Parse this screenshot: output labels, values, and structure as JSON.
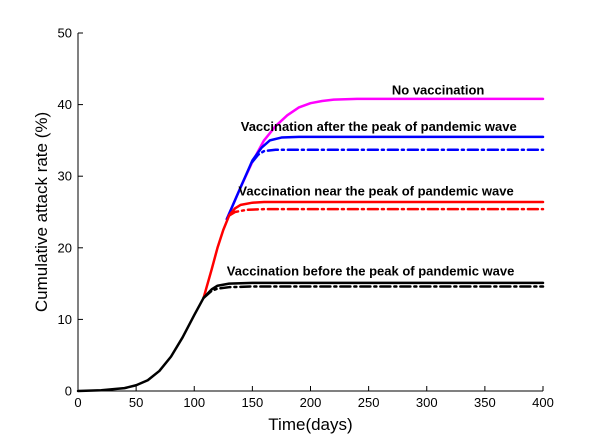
{
  "chart_data": {
    "type": "line",
    "title": "",
    "xlabel": "Time(days)",
    "ylabel": "Cumulative attack rate (%)",
    "xlim": [
      0,
      400
    ],
    "ylim": [
      0,
      50
    ],
    "xticks": [
      0,
      50,
      100,
      150,
      200,
      250,
      300,
      350,
      400
    ],
    "yticks": [
      0,
      10,
      20,
      30,
      40,
      50
    ],
    "grid": false,
    "legend": "none",
    "series": [
      {
        "color": "#ff00ff",
        "style": "solid",
        "points": [
          [
            128,
            24
          ],
          [
            140,
            28.5
          ],
          [
            150,
            32
          ],
          [
            160,
            35
          ],
          [
            170,
            37
          ],
          [
            180,
            38.5
          ],
          [
            190,
            39.6
          ],
          [
            200,
            40.2
          ],
          [
            210,
            40.5
          ],
          [
            220,
            40.7
          ],
          [
            240,
            40.8
          ],
          [
            300,
            40.8
          ],
          [
            400,
            40.8
          ]
        ]
      },
      {
        "color": "#0000ff",
        "style": "solid",
        "points": [
          [
            128,
            24
          ],
          [
            140,
            28.5
          ],
          [
            150,
            32.2
          ],
          [
            158,
            34
          ],
          [
            165,
            35
          ],
          [
            175,
            35.4
          ],
          [
            190,
            35.5
          ],
          [
            400,
            35.5
          ]
        ]
      },
      {
        "color": "#0000ff",
        "style": "dashdot",
        "points": [
          [
            150,
            32
          ],
          [
            155,
            33
          ],
          [
            160,
            33.5
          ],
          [
            170,
            33.7
          ],
          [
            400,
            33.7
          ]
        ]
      },
      {
        "color": "#ff0000",
        "style": "solid",
        "points": [
          [
            108,
            13
          ],
          [
            115,
            17
          ],
          [
            120,
            20
          ],
          [
            125,
            22.5
          ],
          [
            130,
            24.5
          ],
          [
            135,
            25.5
          ],
          [
            140,
            26
          ],
          [
            150,
            26.3
          ],
          [
            160,
            26.4
          ],
          [
            400,
            26.4
          ]
        ]
      },
      {
        "color": "#ff0000",
        "style": "dashdot",
        "points": [
          [
            130,
            24.5
          ],
          [
            135,
            25
          ],
          [
            145,
            25.3
          ],
          [
            160,
            25.4
          ],
          [
            400,
            25.4
          ]
        ]
      },
      {
        "color": "#000000",
        "style": "solid",
        "points": [
          [
            0,
            0
          ],
          [
            20,
            0.1
          ],
          [
            40,
            0.4
          ],
          [
            50,
            0.8
          ],
          [
            60,
            1.5
          ],
          [
            70,
            2.8
          ],
          [
            80,
            4.8
          ],
          [
            90,
            7.5
          ],
          [
            100,
            10.6
          ],
          [
            108,
            13
          ],
          [
            115,
            14.2
          ],
          [
            120,
            14.7
          ],
          [
            130,
            15
          ],
          [
            150,
            15.1
          ],
          [
            400,
            15.1
          ]
        ]
      },
      {
        "color": "#000000",
        "style": "dashdot",
        "points": [
          [
            108,
            13
          ],
          [
            115,
            14
          ],
          [
            120,
            14.3
          ],
          [
            130,
            14.5
          ],
          [
            150,
            14.6
          ],
          [
            400,
            14.6
          ]
        ]
      }
    ],
    "annotations": [
      {
        "text": "No vaccination",
        "x": 270,
        "y": 41.4
      },
      {
        "text": "Vaccination after the peak of pandemic wave",
        "x": 140,
        "y": 36.3
      },
      {
        "text": "Vaccination near the peak of pandemic wave",
        "x": 138,
        "y": 27.3
      },
      {
        "text": "Vaccination before the peak of pandemic wave",
        "x": 128,
        "y": 16.1
      }
    ]
  }
}
